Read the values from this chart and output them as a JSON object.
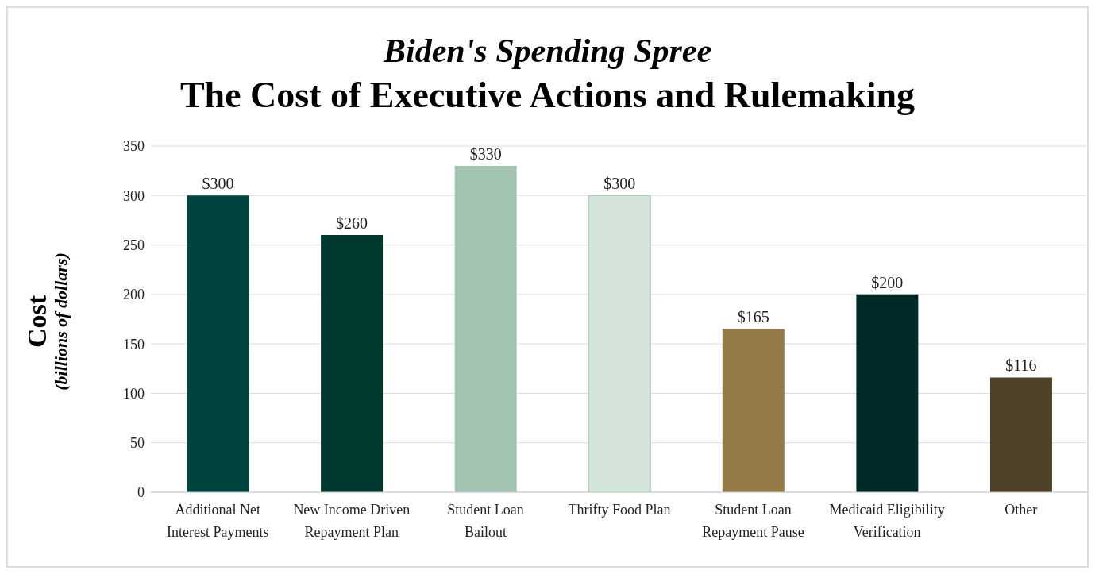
{
  "chart_data": {
    "type": "bar",
    "title": "Biden's Spending Spree",
    "subtitle": "The Cost of Executive Actions and Rulemaking",
    "ylabel": "Cost\n(billions of dollars)",
    "categories": [
      "Additional Net Interest Payments",
      "New Income Driven Repayment Plan",
      "Student Loan Bailout",
      "Thrifty Food Plan",
      "Student Loan Repayment Pause",
      "Medicaid Eligibility Verification",
      "Other"
    ],
    "values": [
      300,
      260,
      330,
      300,
      165,
      200,
      116
    ],
    "colors": [
      "#00443f",
      "#003830",
      "#a3c4b0",
      "#d4e4da",
      "#957b48",
      "#002a28",
      "#4e4127"
    ],
    "value_labels": [
      "$300",
      "$260",
      "$330",
      "$300",
      "$165",
      "$200",
      "$116"
    ],
    "ylim": [
      0,
      350
    ],
    "yticks": [
      0,
      50,
      100,
      150,
      200,
      250,
      300,
      350
    ],
    "grid": "y"
  }
}
